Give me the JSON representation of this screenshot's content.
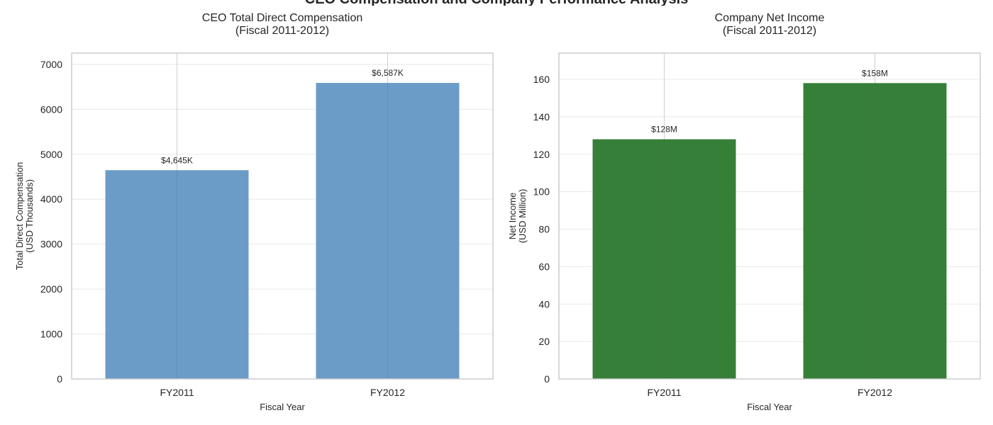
{
  "figure": {
    "suptitle": "CEO Compensation and Company Performance Analysis"
  },
  "chart_data": [
    {
      "type": "bar",
      "title_lines": [
        "CEO Total Direct Compensation",
        "(Fiscal 2011-2012)"
      ],
      "xlabel": "Fiscal Year",
      "ylabel_lines": [
        "Total Direct Compensation",
        "(USD Thousands)"
      ],
      "categories": [
        "FY2011",
        "FY2012"
      ],
      "values": [
        4645,
        6587
      ],
      "data_labels": [
        "$4,645K",
        "$6,587K"
      ],
      "yticks": [
        0,
        1000,
        2000,
        3000,
        4000,
        5000,
        6000,
        7000
      ],
      "ylim": [
        0,
        7250
      ],
      "bar_color": "#6b9bc7",
      "grid": true
    },
    {
      "type": "bar",
      "title_lines": [
        "Company Net Income",
        "(Fiscal 2011-2012)"
      ],
      "xlabel": "Fiscal Year",
      "ylabel_lines": [
        "Net Income",
        "(USD Million)"
      ],
      "categories": [
        "FY2011",
        "FY2012"
      ],
      "values": [
        128,
        158
      ],
      "data_labels": [
        "$128M",
        "$158M"
      ],
      "yticks": [
        0,
        20,
        40,
        60,
        80,
        100,
        120,
        140,
        160
      ],
      "ylim": [
        0,
        174
      ],
      "bar_color": "#357f38",
      "grid": true
    }
  ]
}
